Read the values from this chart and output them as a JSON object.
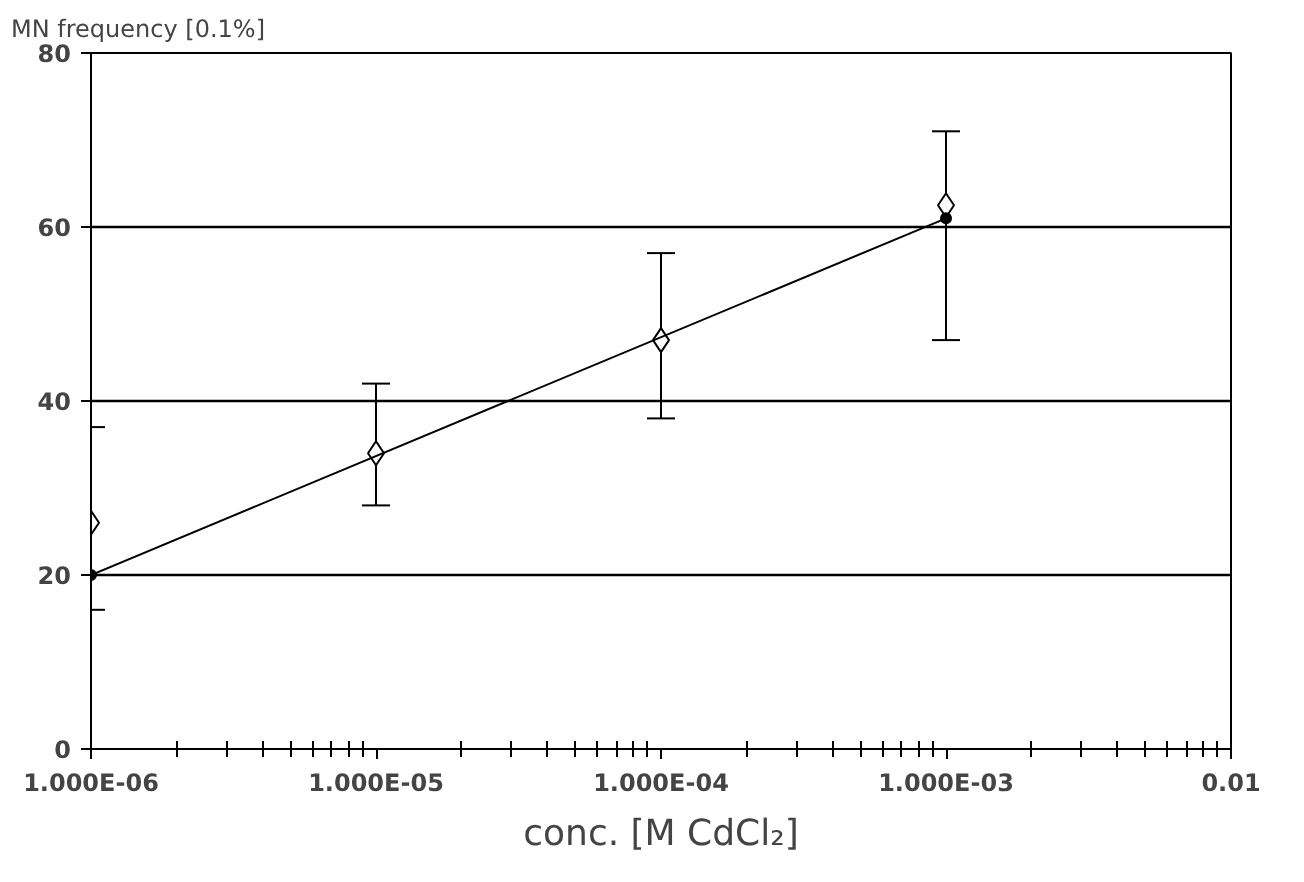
{
  "chart_data": {
    "type": "scatter",
    "ylabel": "MN frequency [0.1%]",
    "xlabel": "conc. [M CdCl₂]",
    "log": "x",
    "xlim": [
      1e-06,
      0.01
    ],
    "xticks": [
      {
        "value": 1e-06,
        "label": "1.000E-06"
      },
      {
        "value": 1e-05,
        "label": "1.000E-05"
      },
      {
        "value": 0.0001,
        "label": "1.000E-04"
      },
      {
        "value": 0.001,
        "label": "1.000E-03"
      },
      {
        "value": 0.01,
        "label": "0.01"
      }
    ],
    "ylim": [
      0,
      80
    ],
    "yticks": [
      0,
      20,
      40,
      60,
      80
    ],
    "grid": "y",
    "series": [
      {
        "marker": "diamond",
        "color": "#000000",
        "x": [
          1e-06,
          1e-05,
          0.0001,
          0.001
        ],
        "values": [
          26,
          34,
          47,
          62.5
        ],
        "errors": [
          [
            16,
            37
          ],
          [
            28,
            42
          ],
          [
            38,
            57
          ],
          [
            47,
            71
          ]
        ]
      },
      {
        "type": "line",
        "marker": "circle",
        "line_style": "solid",
        "color": "#000000",
        "x": [
          1e-06,
          0.001
        ],
        "values": [
          20,
          61
        ]
      }
    ]
  }
}
